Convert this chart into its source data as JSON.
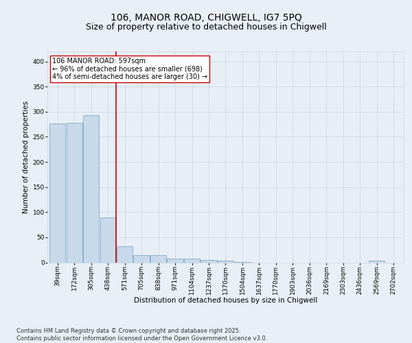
{
  "title_line1": "106, MANOR ROAD, CHIGWELL, IG7 5PQ",
  "title_line2": "Size of property relative to detached houses in Chigwell",
  "xlabel": "Distribution of detached houses by size in Chigwell",
  "ylabel": "Number of detached properties",
  "categories": [
    "39sqm",
    "172sqm",
    "305sqm",
    "438sqm",
    "571sqm",
    "705sqm",
    "838sqm",
    "971sqm",
    "1104sqm",
    "1237sqm",
    "1370sqm",
    "1504sqm",
    "1637sqm",
    "1770sqm",
    "1903sqm",
    "2036sqm",
    "2169sqm",
    "2303sqm",
    "2436sqm",
    "2569sqm",
    "2702sqm"
  ],
  "values": [
    276,
    278,
    293,
    89,
    32,
    15,
    15,
    8,
    7,
    5,
    4,
    1,
    0,
    0,
    0,
    0,
    0,
    0,
    0,
    3,
    0
  ],
  "bar_color": "#c8d9ea",
  "bar_edge_color": "#6a9fc0",
  "vline_x": 3.5,
  "vline_color": "#cc0000",
  "annotation_text": "106 MANOR ROAD: 597sqm\n← 96% of detached houses are smaller (698)\n4% of semi-detached houses are larger (30) →",
  "annotation_box_color": "#ffffff",
  "annotation_box_edge": "#cc0000",
  "annotation_fontsize": 7,
  "ylim": [
    0,
    420
  ],
  "yticks": [
    0,
    50,
    100,
    150,
    200,
    250,
    300,
    350,
    400
  ],
  "grid_color": "#c8d4e3",
  "background_color": "#e8eef6",
  "fig_background_color": "#eaeff7",
  "footer_text": "Contains HM Land Registry data © Crown copyright and database right 2025.\nContains public sector information licensed under the Open Government Licence v3.0.",
  "title_fontsize": 10,
  "subtitle_fontsize": 9,
  "axis_label_fontsize": 7.5,
  "tick_fontsize": 6.5,
  "footer_fontsize": 6.0
}
